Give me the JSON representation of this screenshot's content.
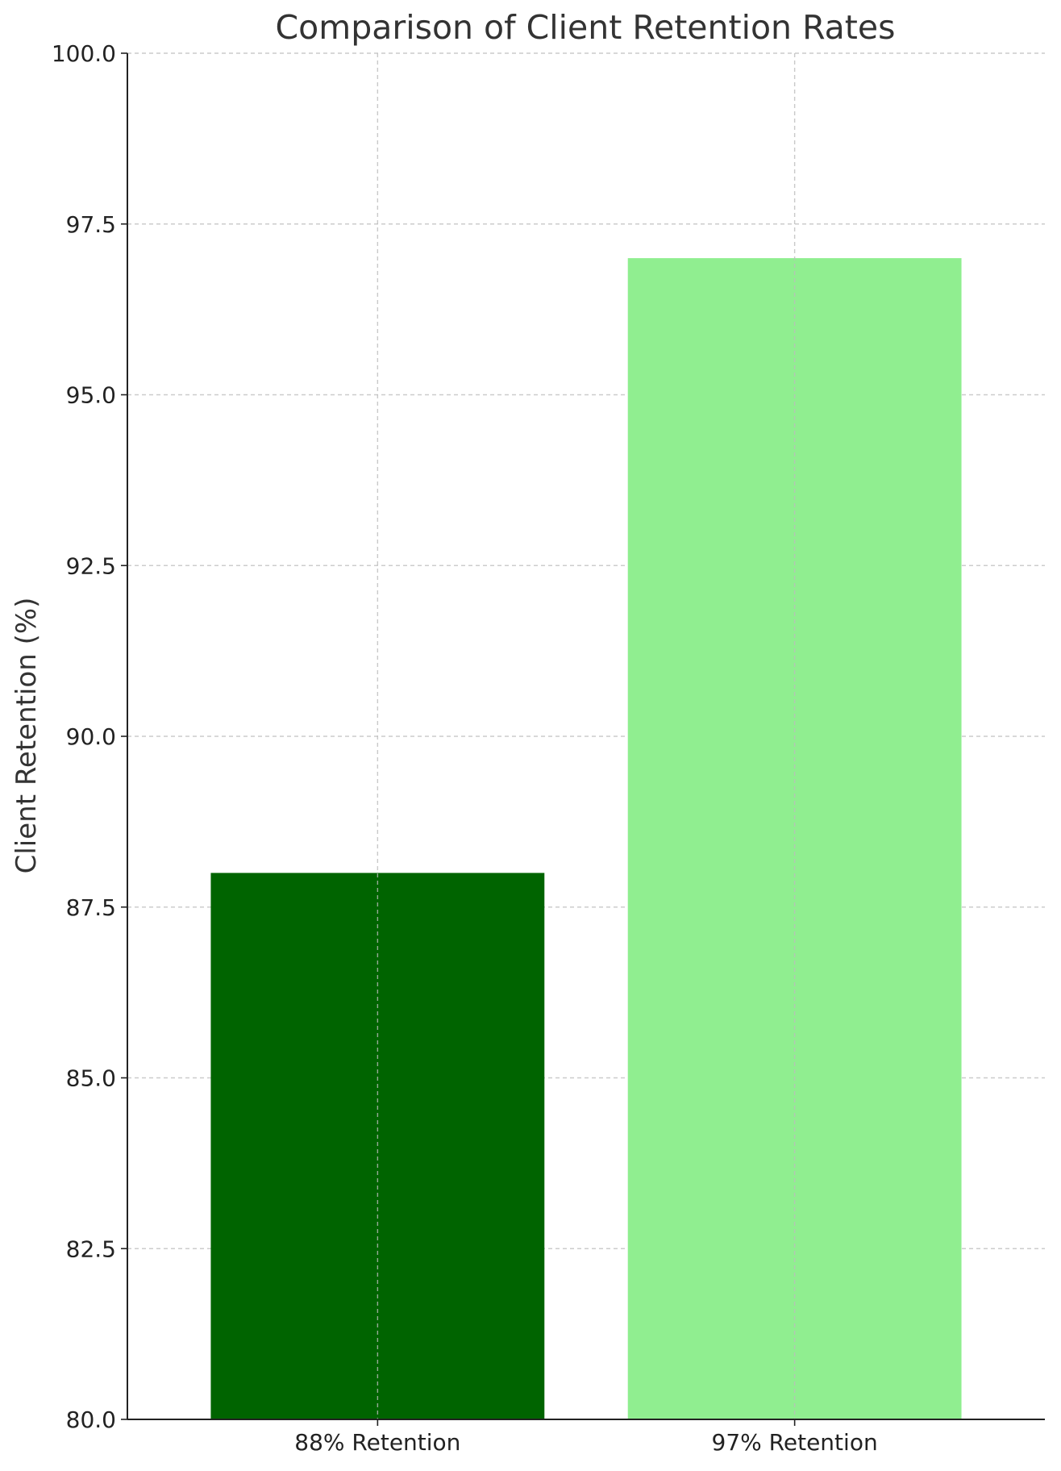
{
  "chart_data": {
    "type": "bar",
    "title": "Comparison of Client Retention Rates",
    "xlabel": "",
    "ylabel": "Client Retention (%)",
    "categories": [
      "88% Retention",
      "97% Retention"
    ],
    "values": [
      88,
      97
    ],
    "colors": [
      "#006400",
      "#90EE90"
    ],
    "ylim": [
      80,
      100
    ],
    "yticks": [
      "80.0",
      "82.5",
      "85.0",
      "87.5",
      "90.0",
      "92.5",
      "95.0",
      "97.5",
      "100.0"
    ],
    "grid": true,
    "grid_style": "dashed"
  }
}
